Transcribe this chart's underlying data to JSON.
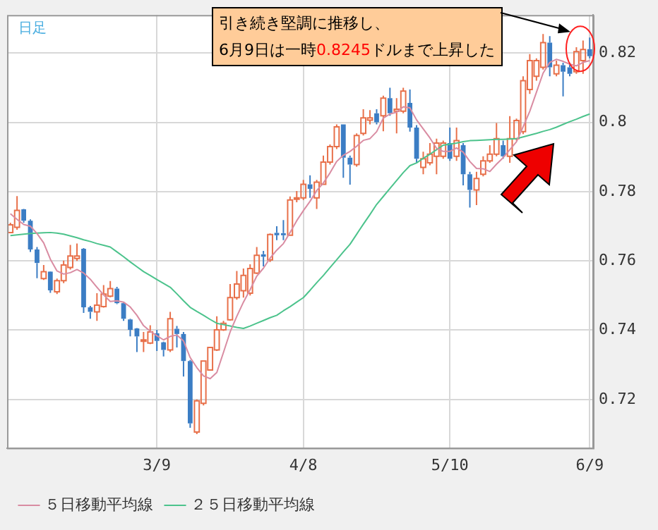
{
  "chart_data": {
    "type": "candlestick",
    "title": "日足",
    "categories": [
      null,
      null,
      null,
      null,
      null,
      null,
      null,
      null,
      null,
      null,
      null,
      null,
      null,
      null,
      null,
      null,
      null,
      null,
      null,
      null,
      null,
      null,
      "3/9",
      null,
      null,
      null,
      null,
      null,
      null,
      null,
      null,
      null,
      null,
      null,
      null,
      null,
      null,
      null,
      null,
      null,
      null,
      null,
      null,
      null,
      "4/8",
      null,
      null,
      null,
      null,
      null,
      null,
      null,
      null,
      null,
      null,
      null,
      null,
      null,
      null,
      null,
      null,
      null,
      null,
      null,
      null,
      null,
      "5/10",
      null,
      null,
      null,
      null,
      null,
      null,
      null,
      null,
      null,
      null,
      null,
      null,
      null,
      null,
      null,
      null,
      null,
      null,
      null,
      null,
      "6/9"
    ],
    "ohlc": [
      [
        0.7682,
        0.771,
        0.768,
        0.7704
      ],
      [
        0.7697,
        0.7787,
        0.769,
        0.7746
      ],
      [
        0.7749,
        0.775,
        0.771,
        0.7716
      ],
      [
        0.7716,
        0.772,
        0.7626,
        0.7633
      ],
      [
        0.7633,
        0.764,
        0.755,
        0.7594
      ],
      [
        0.7549,
        0.7588,
        0.7545,
        0.7569
      ],
      [
        0.7569,
        0.757,
        0.7508,
        0.7515
      ],
      [
        0.7511,
        0.7549,
        0.7504,
        0.7543
      ],
      [
        0.7543,
        0.7601,
        0.7536,
        0.7588
      ],
      [
        0.7581,
        0.7646,
        0.7575,
        0.7614
      ],
      [
        0.7607,
        0.765,
        0.76,
        0.7614
      ],
      [
        0.7635,
        0.7637,
        0.745,
        0.7466
      ],
      [
        0.7466,
        0.747,
        0.7433,
        0.7453
      ],
      [
        0.7453,
        0.7507,
        0.7427,
        0.7472
      ],
      [
        0.7468,
        0.753,
        0.7465,
        0.7504
      ],
      [
        0.7498,
        0.7542,
        0.7495,
        0.752
      ],
      [
        0.752,
        0.7525,
        0.7475,
        0.7478
      ],
      [
        0.7478,
        0.748,
        0.7427,
        0.7433
      ],
      [
        0.7431,
        0.7433,
        0.7382,
        0.7401
      ],
      [
        0.7405,
        0.7406,
        0.7337,
        0.7382
      ],
      [
        0.7369,
        0.7395,
        0.7337,
        0.7372
      ],
      [
        0.7363,
        0.7414,
        0.736,
        0.7395
      ],
      [
        0.7391,
        0.7401,
        0.734,
        0.7369
      ],
      [
        0.7365,
        0.7367,
        0.7324,
        0.7343
      ],
      [
        0.7343,
        0.7453,
        0.7337,
        0.7433
      ],
      [
        0.7404,
        0.7412,
        0.735,
        0.7389
      ],
      [
        0.7389,
        0.7395,
        0.7266,
        0.7311
      ],
      [
        0.7311,
        0.7314,
        0.7118,
        0.7131
      ],
      [
        0.7106,
        0.72,
        0.71,
        0.7196
      ],
      [
        0.7189,
        0.7311,
        0.7183,
        0.7311
      ],
      [
        0.7285,
        0.735,
        0.7285,
        0.735
      ],
      [
        0.7343,
        0.744,
        0.734,
        0.7401
      ],
      [
        0.7401,
        0.7427,
        0.7398,
        0.742
      ],
      [
        0.743,
        0.7533,
        0.7428,
        0.7494
      ],
      [
        0.7494,
        0.7571,
        0.7488,
        0.7533
      ],
      [
        0.7514,
        0.7578,
        0.7494,
        0.7558
      ],
      [
        0.7507,
        0.759,
        0.75,
        0.7578
      ],
      [
        0.7565,
        0.764,
        0.7562,
        0.7616
      ],
      [
        0.7619,
        0.7629,
        0.7584,
        0.7612
      ],
      [
        0.7603,
        0.7679,
        0.7597,
        0.7676
      ],
      [
        0.7681,
        0.77,
        0.766,
        0.7674
      ],
      [
        0.768,
        0.7718,
        0.766,
        0.7674
      ],
      [
        0.7674,
        0.7786,
        0.7674,
        0.7776
      ],
      [
        0.778,
        0.7802,
        0.7769,
        0.7782
      ],
      [
        0.7782,
        0.7834,
        0.7776,
        0.7821
      ],
      [
        0.7821,
        0.7847,
        0.7782,
        0.7808
      ],
      [
        0.7782,
        0.7834,
        0.775,
        0.7827
      ],
      [
        0.7821,
        0.7904,
        0.7821,
        0.7885
      ],
      [
        0.7885,
        0.7936,
        0.7878,
        0.793
      ],
      [
        0.793,
        0.7994,
        0.7923,
        0.7987
      ],
      [
        0.7994,
        0.7994,
        0.784,
        0.7898
      ],
      [
        0.7898,
        0.7904,
        0.782,
        0.7878
      ],
      [
        0.7878,
        0.7968,
        0.7872,
        0.7962
      ],
      [
        0.7968,
        0.8038,
        0.7962,
        0.8013
      ],
      [
        0.8006,
        0.8035,
        0.7994,
        0.8013
      ],
      [
        0.8026,
        0.8038,
        0.7994,
        0.8
      ],
      [
        0.8019,
        0.8077,
        0.7974,
        0.807
      ],
      [
        0.807,
        0.81,
        0.8019,
        0.8026
      ],
      [
        0.8032,
        0.807,
        0.7968,
        0.8038
      ],
      [
        0.8032,
        0.81,
        0.8026,
        0.809
      ],
      [
        0.8056,
        0.8095,
        0.7973,
        0.7985
      ],
      [
        0.7985,
        0.7992,
        0.7883,
        0.7895
      ],
      [
        0.787,
        0.7915,
        0.785,
        0.7895
      ],
      [
        0.7883,
        0.794,
        0.7876,
        0.7908
      ],
      [
        0.7902,
        0.7953,
        0.785,
        0.794
      ],
      [
        0.7902,
        0.7947,
        0.7895,
        0.794
      ],
      [
        0.794,
        0.7985,
        0.7889,
        0.7895
      ],
      [
        0.7902,
        0.7985,
        0.7889,
        0.7947
      ],
      [
        0.7934,
        0.794,
        0.7818,
        0.785
      ],
      [
        0.785,
        0.7857,
        0.7754,
        0.7805
      ],
      [
        0.7805,
        0.7857,
        0.7761,
        0.7838
      ],
      [
        0.785,
        0.7902,
        0.7844,
        0.7889
      ],
      [
        0.7889,
        0.7934,
        0.7883,
        0.7908
      ],
      [
        0.7908,
        0.7998,
        0.7902,
        0.7953
      ],
      [
        0.7934,
        0.7947,
        0.7895,
        0.7902
      ],
      [
        0.7902,
        0.8018,
        0.7883,
        0.7953
      ],
      [
        0.7953,
        0.8011,
        0.7947,
        0.8005
      ],
      [
        0.7973,
        0.8133,
        0.7966,
        0.812
      ],
      [
        0.8095,
        0.8197,
        0.8082,
        0.8178
      ],
      [
        0.8133,
        0.8185,
        0.812,
        0.8178
      ],
      [
        0.8159,
        0.8255,
        0.8152,
        0.823
      ],
      [
        0.823,
        0.8249,
        0.8133,
        0.8159
      ],
      [
        0.814,
        0.8178,
        0.8133,
        0.8165
      ],
      [
        0.8165,
        0.8172,
        0.8075,
        0.8146
      ],
      [
        0.8159,
        0.8172,
        0.8133,
        0.814
      ],
      [
        0.8146,
        0.8217,
        0.814,
        0.8204
      ],
      [
        0.8178,
        0.8236,
        0.814,
        0.821
      ],
      [
        0.8211,
        0.8245,
        0.8185,
        0.8191
      ]
    ],
    "colors": [
      "#e8704a",
      "#e8704a",
      "#3b7dc4",
      "#3b7dc4",
      "#3b7dc4",
      "#e8704a",
      "#3b7dc4",
      "#e8704a",
      "#e8704a",
      "#e8704a",
      "#e8704a",
      "#3b7dc4",
      "#3b7dc4",
      "#e8704a",
      "#e8704a",
      "#e8704a",
      "#3b7dc4",
      "#3b7dc4",
      "#3b7dc4",
      "#3b7dc4",
      "#e8704a",
      "#e8704a",
      "#3b7dc4",
      "#3b7dc4",
      "#e8704a",
      "#3b7dc4",
      "#3b7dc4",
      "#3b7dc4",
      "#e8704a",
      "#e8704a",
      "#e8704a",
      "#e8704a",
      "#e8704a",
      "#e8704a",
      "#e8704a",
      "#e8704a",
      "#e8704a",
      "#e8704a",
      "#3b7dc4",
      "#e8704a",
      "#3b7dc4",
      "#3b7dc4",
      "#e8704a",
      "#e8704a",
      "#e8704a",
      "#3b7dc4",
      "#e8704a",
      "#e8704a",
      "#e8704a",
      "#e8704a",
      "#3b7dc4",
      "#3b7dc4",
      "#e8704a",
      "#e8704a",
      "#e8704a",
      "#3b7dc4",
      "#e8704a",
      "#3b7dc4",
      "#e8704a",
      "#e8704a",
      "#3b7dc4",
      "#3b7dc4",
      "#e8704a",
      "#e8704a",
      "#e8704a",
      "#e8704a",
      "#3b7dc4",
      "#e8704a",
      "#3b7dc4",
      "#3b7dc4",
      "#e8704a",
      "#e8704a",
      "#e8704a",
      "#e8704a",
      "#3b7dc4",
      "#e8704a",
      "#e8704a",
      "#e8704a",
      "#e8704a",
      "#e8704a",
      "#e8704a",
      "#3b7dc4",
      "#e8704a",
      "#3b7dc4",
      "#3b7dc4",
      "#e8704a",
      "#e8704a",
      "#3b7dc4"
    ],
    "series": [
      {
        "type": "line",
        "name": "５日移動平均線",
        "color": "#d98ca2",
        "values": [
          0.7736,
          0.772,
          0.7705,
          0.77,
          0.7679,
          0.7652,
          0.7605,
          0.7571,
          0.7562,
          0.7566,
          0.7575,
          0.7565,
          0.7547,
          0.7524,
          0.7502,
          0.7483,
          0.7485,
          0.7481,
          0.7467,
          0.7443,
          0.7413,
          0.7397,
          0.7384,
          0.7372,
          0.7382,
          0.7386,
          0.7369,
          0.7321,
          0.7292,
          0.7268,
          0.726,
          0.7278,
          0.7336,
          0.7395,
          0.744,
          0.7481,
          0.7517,
          0.7556,
          0.7579,
          0.7608,
          0.7631,
          0.765,
          0.7682,
          0.7716,
          0.7745,
          0.7772,
          0.7803,
          0.7825,
          0.7854,
          0.7887,
          0.7905,
          0.7916,
          0.7931,
          0.7948,
          0.7953,
          0.7973,
          0.8012,
          0.8024,
          0.8029,
          0.8045,
          0.8042,
          0.8007,
          0.7981,
          0.7955,
          0.7925,
          0.7916,
          0.7916,
          0.7926,
          0.7914,
          0.7887,
          0.7867,
          0.7866,
          0.7858,
          0.7879,
          0.7898,
          0.7921,
          0.7944,
          0.7987,
          0.8032,
          0.8087,
          0.8142,
          0.8173,
          0.8182,
          0.8176,
          0.8168,
          0.8163,
          0.8173,
          0.8178
        ]
      },
      {
        "type": "line",
        "name": "２５日移動平均線",
        "color": "#4cc38c",
        "values": [
          0.7673,
          0.7675,
          0.7677,
          0.7679,
          0.768,
          0.7681,
          0.7682,
          0.768,
          0.7677,
          0.7672,
          0.7667,
          0.7661,
          0.7656,
          0.765,
          0.7645,
          0.764,
          0.7626,
          0.7612,
          0.7597,
          0.7583,
          0.7569,
          0.7558,
          0.7546,
          0.7535,
          0.7524,
          0.7505,
          0.7485,
          0.7466,
          0.7454,
          0.7443,
          0.7431,
          0.742,
          0.7416,
          0.7412,
          0.7408,
          0.7405,
          0.7412,
          0.742,
          0.7428,
          0.7436,
          0.7443,
          0.7456,
          0.7468,
          0.7481,
          0.7494,
          0.7515,
          0.7537,
          0.7558,
          0.7581,
          0.7603,
          0.7626,
          0.7648,
          0.7677,
          0.7706,
          0.7734,
          0.7763,
          0.7786,
          0.7809,
          0.7832,
          0.7855,
          0.7875,
          0.7883,
          0.7896,
          0.7908,
          0.7921,
          0.7934,
          0.7937,
          0.794,
          0.7944,
          0.7947,
          0.7948,
          0.7949,
          0.795,
          0.7951,
          0.7951,
          0.7952,
          0.7953,
          0.7958,
          0.7963,
          0.7968,
          0.7974,
          0.7979,
          0.7986,
          0.7994,
          0.8002,
          0.8009,
          0.8017,
          0.8024
        ]
      }
    ],
    "ylim": [
      0.706,
      0.831
    ],
    "yticks": [
      0.72,
      0.74,
      0.76,
      0.78,
      0.8,
      0.82
    ],
    "grid": true,
    "legend": "bottom",
    "marker": "none",
    "annotations": [
      "引き続き堅調に推移し、\n6月9日は一時0.8245ドルまで上昇した"
    ]
  }
}
